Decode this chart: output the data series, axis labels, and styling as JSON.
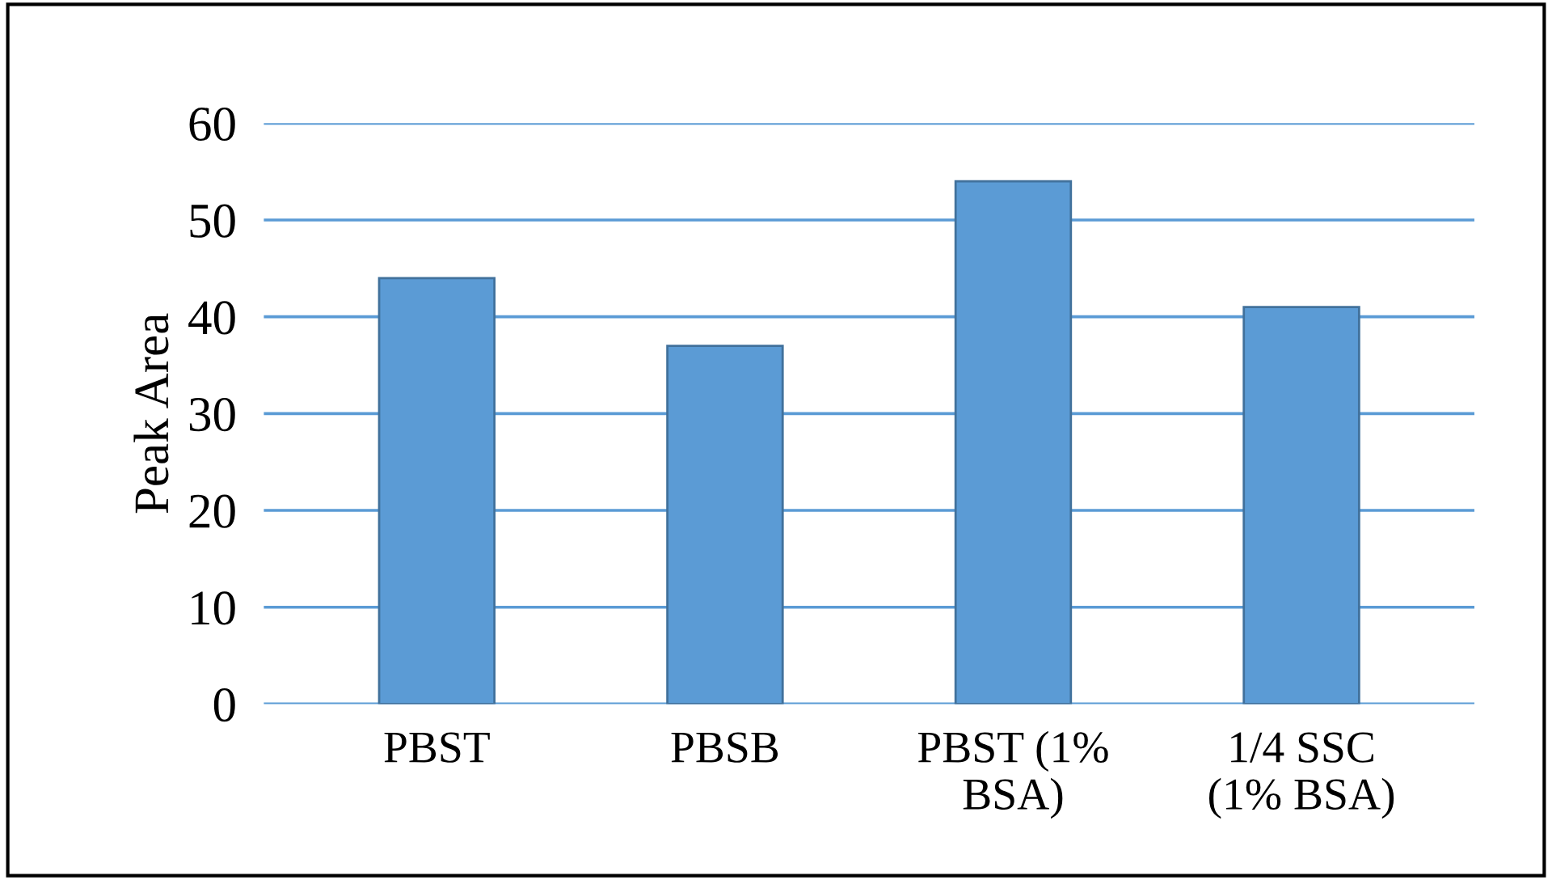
{
  "chart_data": {
    "type": "bar",
    "ylabel": "Peak Area",
    "categories": [
      "PBST",
      "PBSB",
      "PBST (1%\nBSA)",
      "1/4 SSC\n(1% BSA)"
    ],
    "values": [
      44,
      37,
      54,
      41
    ],
    "color": "#5b9bd5",
    "ylim": [
      0,
      60
    ],
    "yticks": [
      0,
      10,
      20,
      30,
      40,
      50,
      60
    ],
    "grid": "y"
  }
}
